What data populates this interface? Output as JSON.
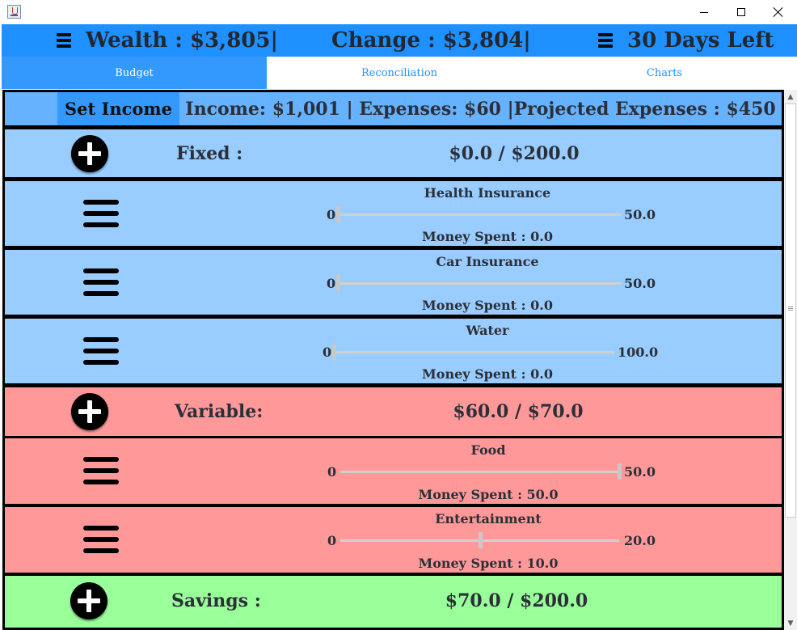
{
  "header": {
    "wealth": "Wealth : $3,805|",
    "change": "Change : $3,804|",
    "days_left": "30 Days Left"
  },
  "tabs": [
    {
      "label": "Budget",
      "active": true
    },
    {
      "label": "Reconciliation",
      "active": false
    },
    {
      "label": "Charts",
      "active": false
    }
  ],
  "income_bar": {
    "button_label": "Set Income",
    "summary": "Income: $1,001 | Expenses: $60 |Projected Expenses : $450"
  },
  "categories": {
    "fixed": {
      "label": "Fixed :",
      "amount": "$0.0 / $200.0",
      "color": "#99ccff",
      "items": [
        {
          "title": "Health Insurance",
          "min": "0",
          "max": "50.0",
          "value": 0,
          "spent": "Money Spent : 0.0"
        },
        {
          "title": "Car Insurance",
          "min": "0",
          "max": "50.0",
          "value": 0,
          "spent": "Money Spent : 0.0"
        },
        {
          "title": "Water",
          "min": "0",
          "max": "100.0",
          "value": 0,
          "spent": "Money Spent : 0.0"
        }
      ]
    },
    "variable": {
      "label": "Variable:",
      "amount": "$60.0 / $70.0",
      "color": "#ff9999",
      "items": [
        {
          "title": "Food",
          "min": "0",
          "max": "50.0",
          "value": 50,
          "spent": "Money Spent : 50.0"
        },
        {
          "title": "Entertainment",
          "min": "0",
          "max": "20.0",
          "value": 10,
          "spent": "Money Spent : 10.0"
        }
      ]
    },
    "savings": {
      "label": "Savings :",
      "amount": "$70.0 / $200.0",
      "color": "#99ff99"
    }
  },
  "colors": {
    "header_bg": "#1e90ff",
    "tab_active_bg": "#3399ff",
    "income_bg": "#66b2ff"
  },
  "icons": {
    "menu": "hamburger-menu-icon",
    "add": "plus-circle-icon",
    "reorder": "drag-handle-icon"
  }
}
